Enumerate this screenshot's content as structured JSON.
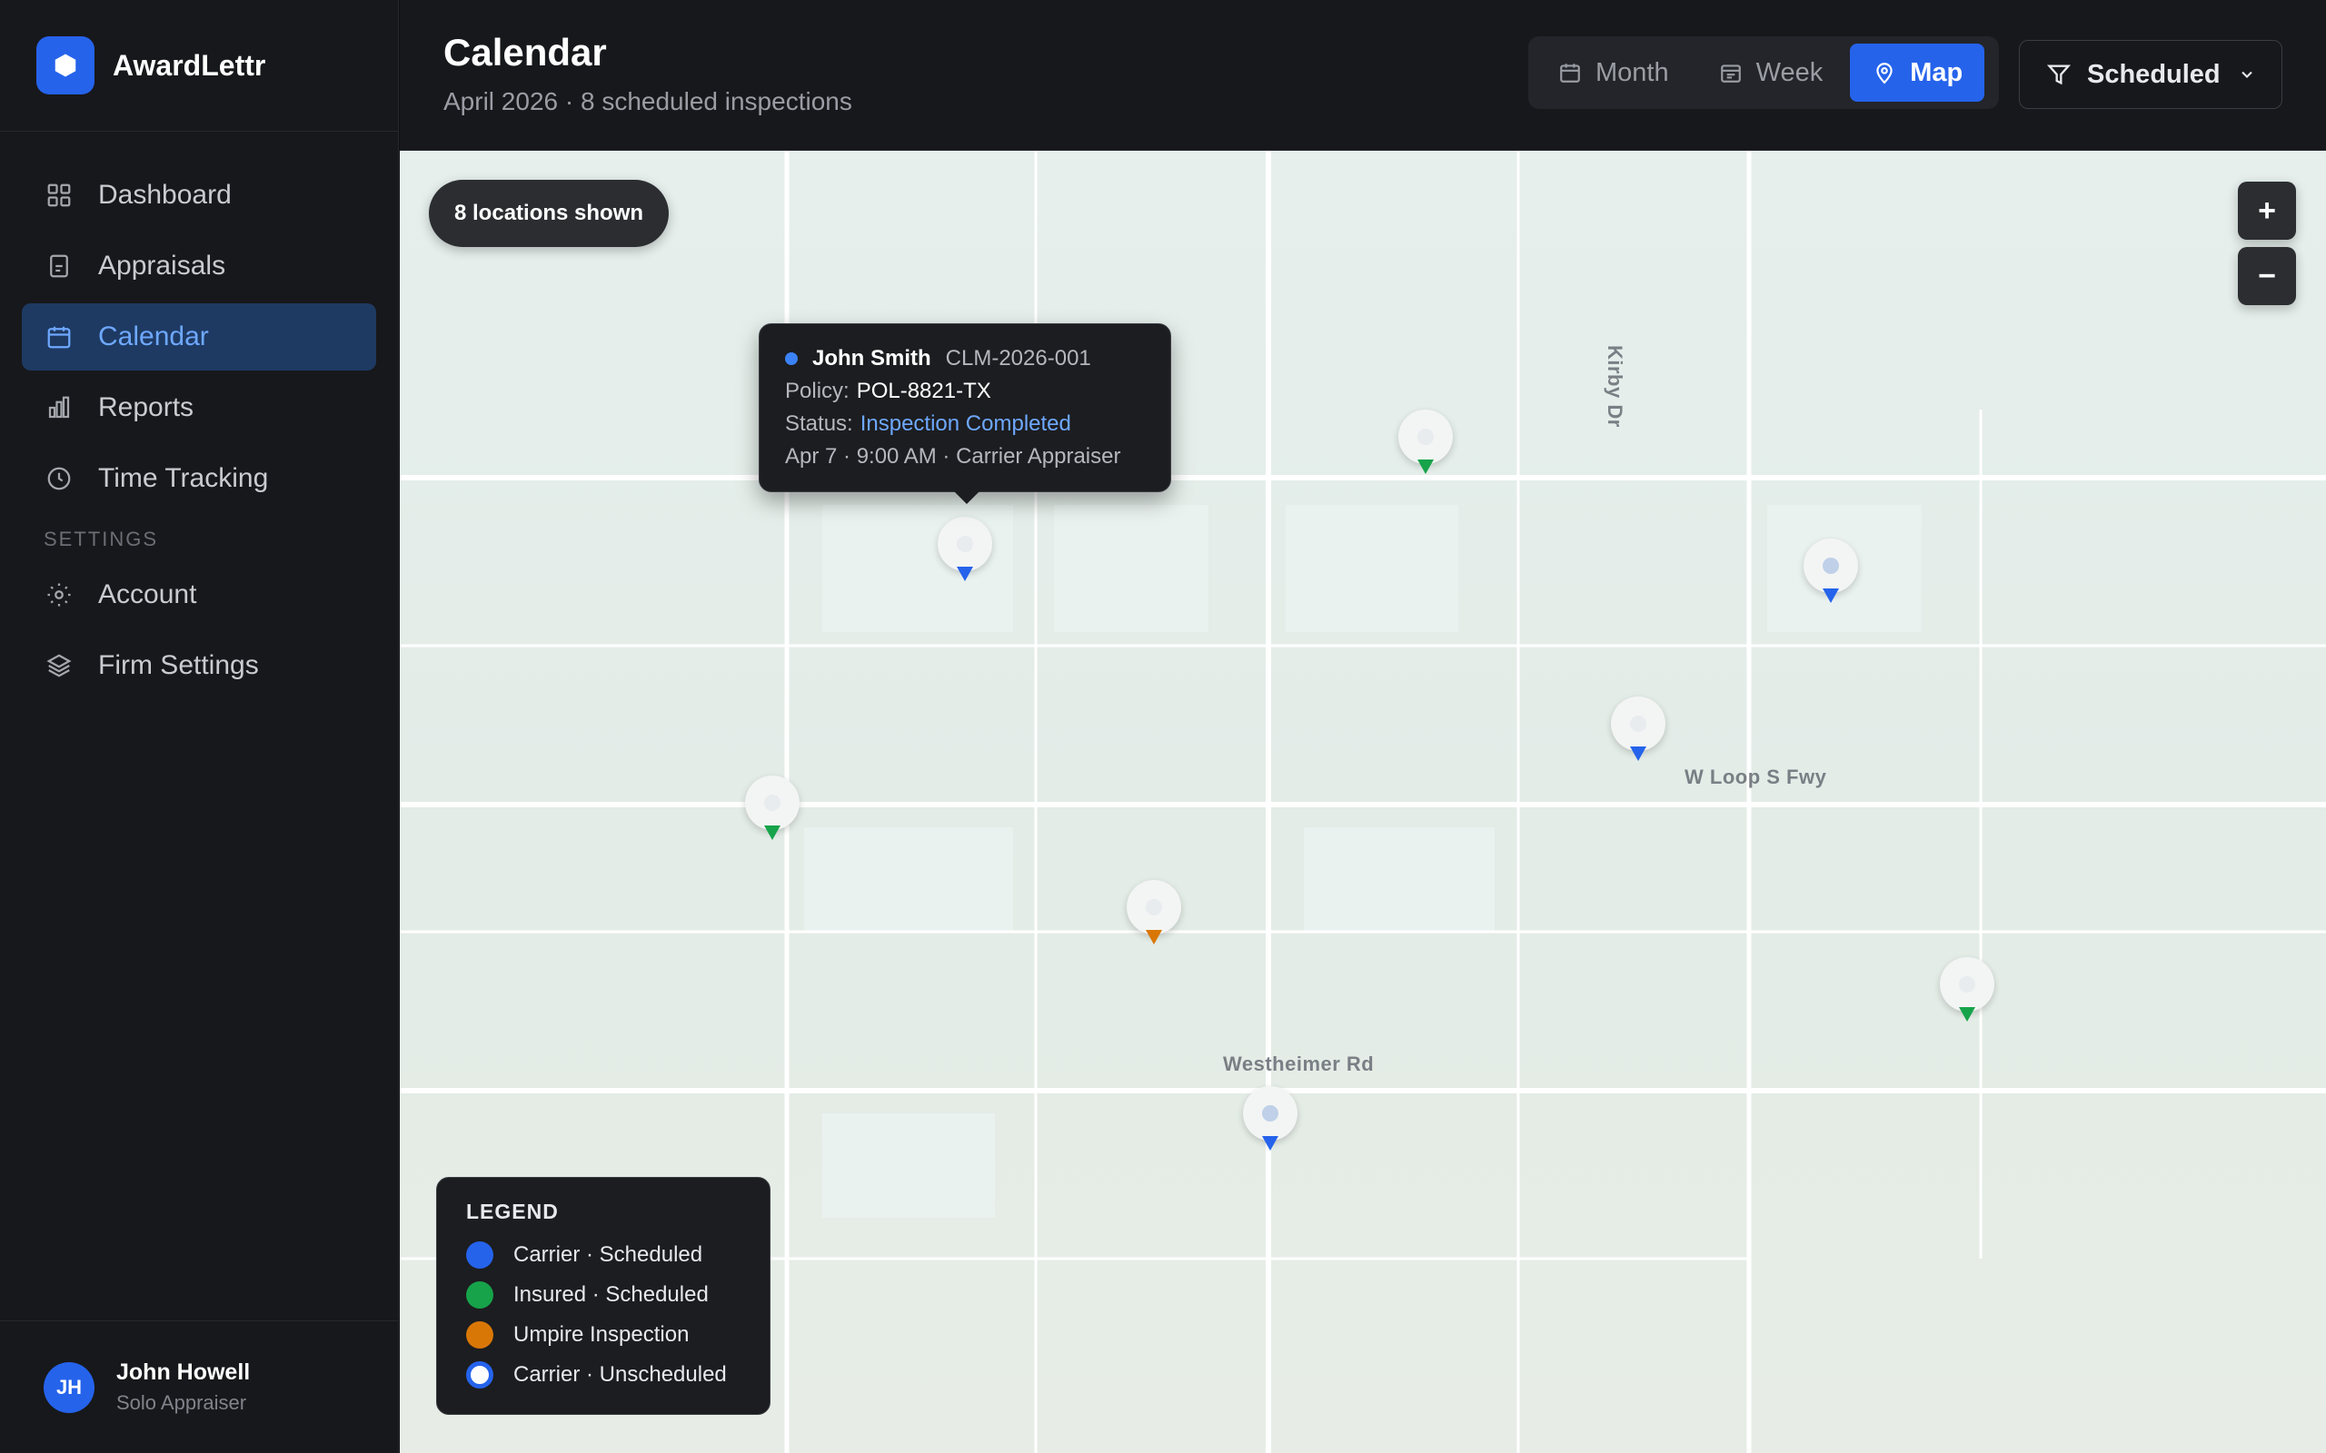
{
  "brand": {
    "name": "AwardLettr"
  },
  "sidebar": {
    "items": [
      {
        "label": "Dashboard",
        "icon": "grid-icon"
      },
      {
        "label": "Appraisals",
        "icon": "document-icon"
      },
      {
        "label": "Calendar",
        "icon": "calendar-icon",
        "active": true
      },
      {
        "label": "Reports",
        "icon": "bar-chart-icon"
      },
      {
        "label": "Time Tracking",
        "icon": "clock-icon"
      }
    ],
    "settings_heading": "SETTINGS",
    "settings_items": [
      {
        "label": "Account",
        "icon": "sun-icon"
      },
      {
        "label": "Firm Settings",
        "icon": "layers-icon"
      }
    ]
  },
  "user": {
    "initials": "JH",
    "name": "John Howell",
    "role": "Solo Appraiser"
  },
  "header": {
    "title": "Calendar",
    "subtitle": "April 2026 · 8 scheduled inspections",
    "views": [
      {
        "label": "Month",
        "icon": "calendar-icon"
      },
      {
        "label": "Week",
        "icon": "calendar-week-icon"
      },
      {
        "label": "Map",
        "icon": "map-pin-icon",
        "active": true
      }
    ],
    "filter": {
      "label": "Scheduled",
      "icon": "filter-icon"
    }
  },
  "map": {
    "locations_pill": "8 locations shown",
    "zoom_in": "+",
    "zoom_out": "−",
    "roads": {
      "kirby": "Kirby Dr",
      "wloop": "W Loop S Fwy",
      "westheimer": "Westheimer Rd"
    },
    "pins": [
      {
        "category": "carrier-scheduled",
        "selected": true
      },
      {
        "category": "insured-scheduled"
      },
      {
        "category": "carrier-scheduled"
      },
      {
        "category": "carrier-scheduled"
      },
      {
        "category": "insured-scheduled"
      },
      {
        "category": "umpire-inspection"
      },
      {
        "category": "insured-scheduled"
      },
      {
        "category": "carrier-scheduled"
      }
    ],
    "tooltip": {
      "name": "John Smith",
      "claim": "CLM-2026-001",
      "policy_label": "Policy:",
      "policy": "POL-8821-TX",
      "status_label": "Status:",
      "status": "Inspection Completed",
      "details": "Apr 7 · 9:00 AM · Carrier Appraiser"
    },
    "legend": {
      "title": "LEGEND",
      "items": [
        {
          "label": "Carrier · Scheduled",
          "color": "#2563eb"
        },
        {
          "label": "Insured · Scheduled",
          "color": "#16a34a"
        },
        {
          "label": "Umpire Inspection",
          "color": "#d97706"
        },
        {
          "label": "Carrier · Unscheduled",
          "color": "#ffffff"
        }
      ]
    }
  },
  "colors": {
    "accent": "#2563eb",
    "insured": "#16a34a",
    "umpire": "#d97706",
    "status_link": "#6ea8ff"
  }
}
